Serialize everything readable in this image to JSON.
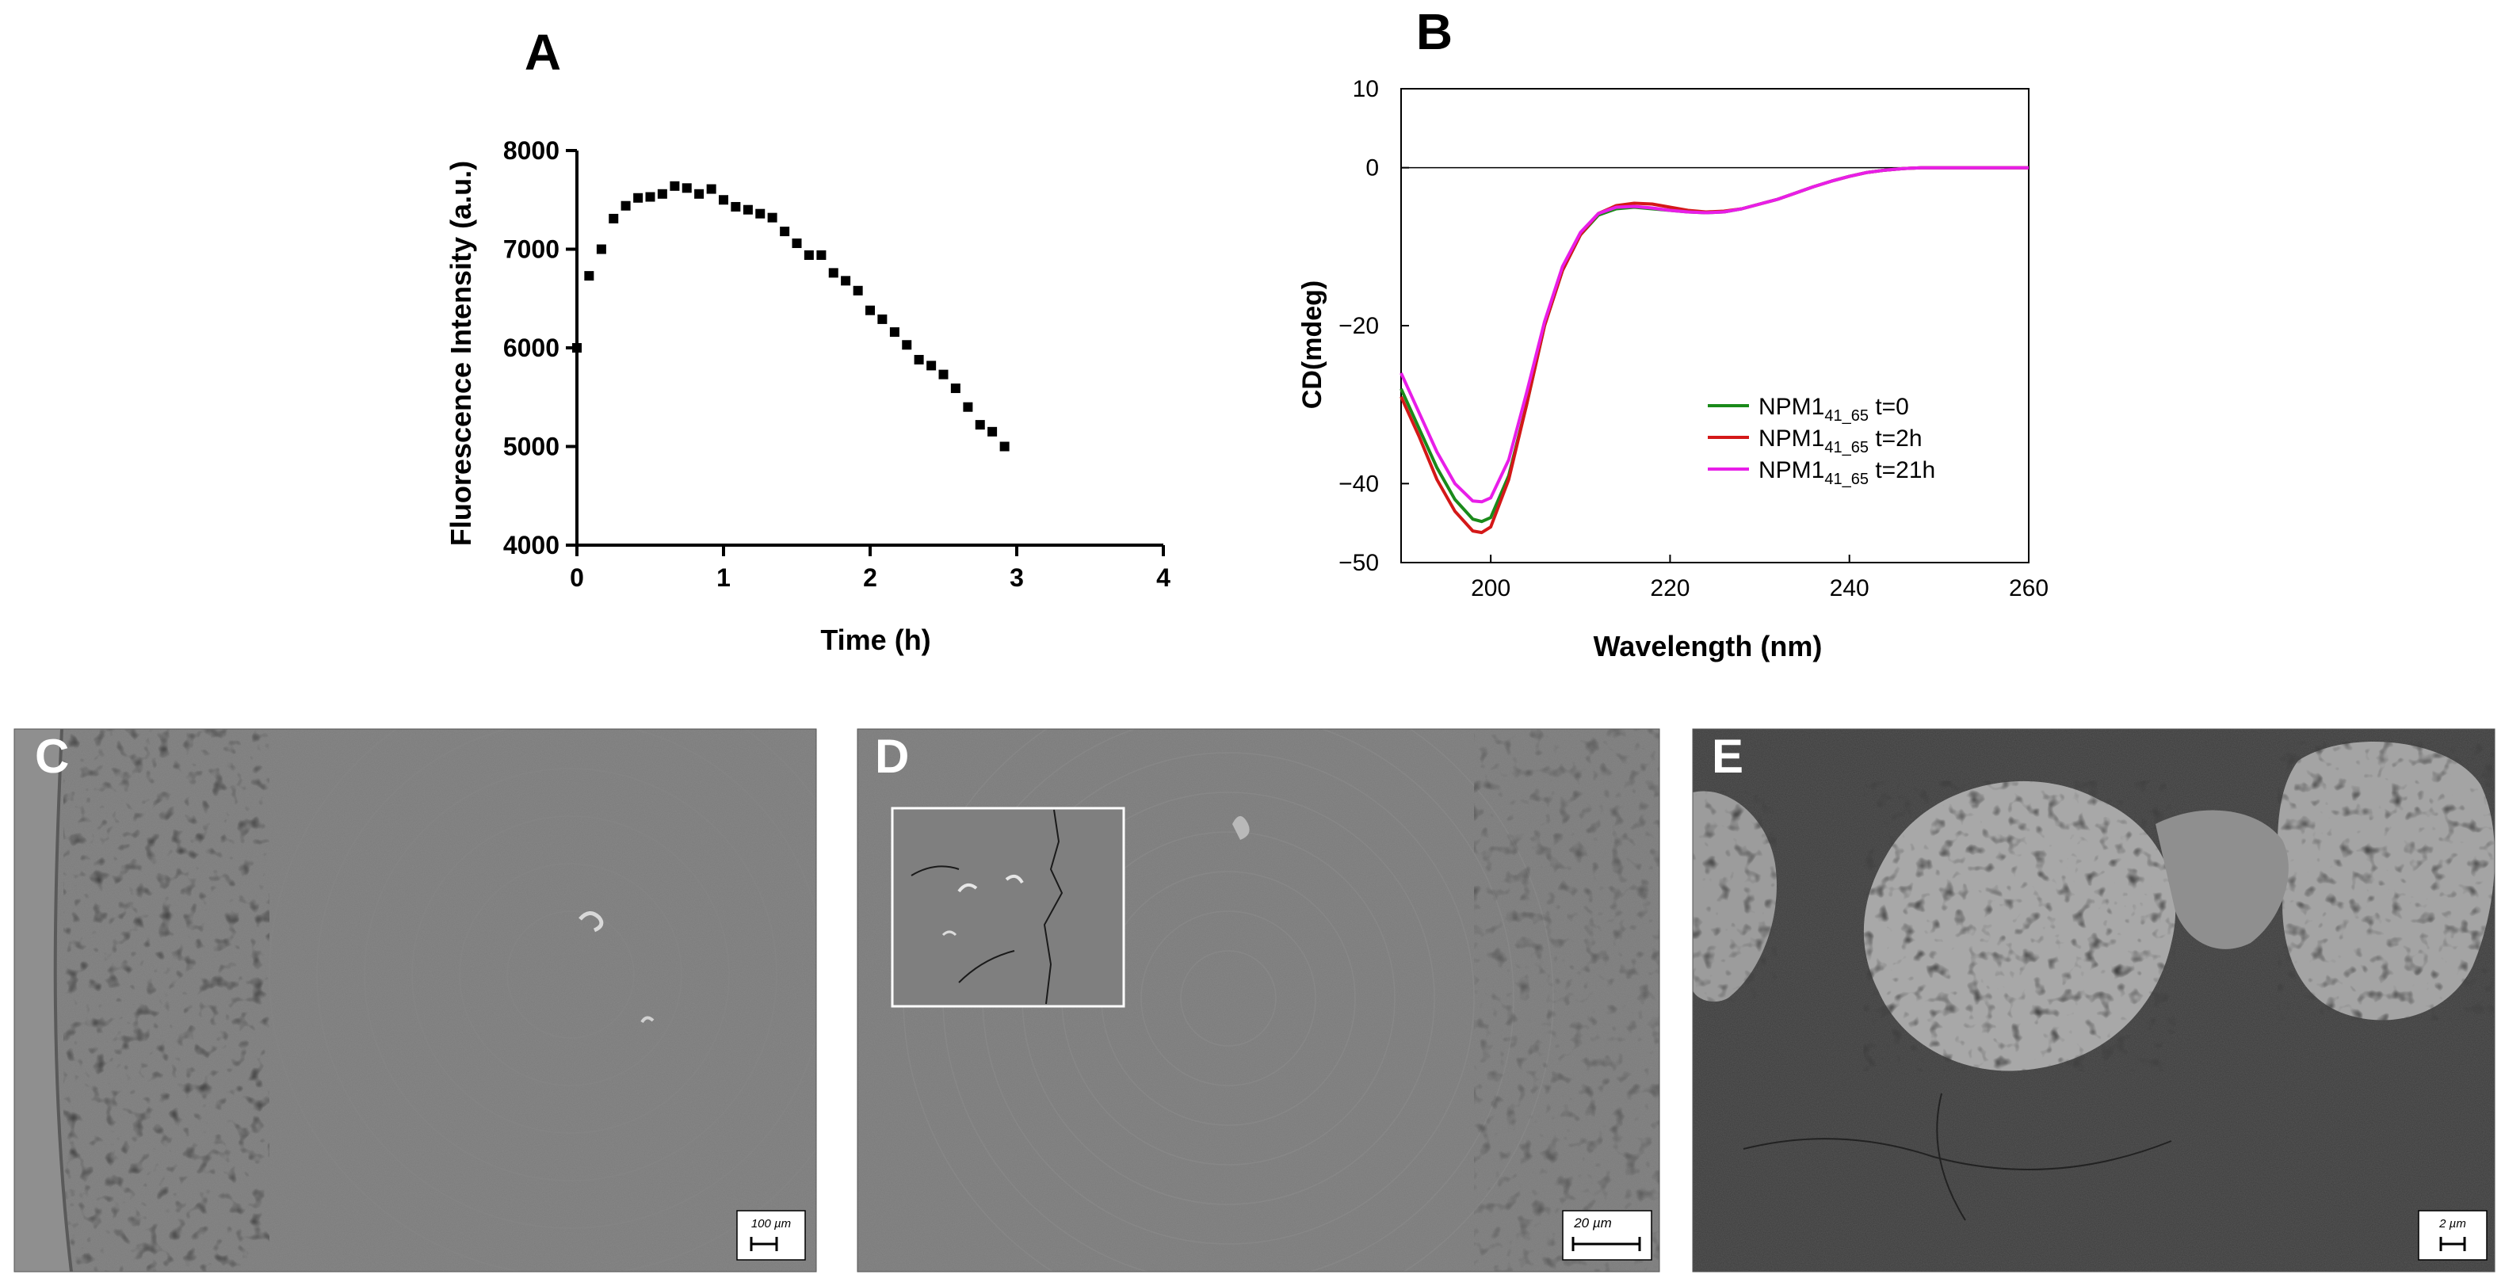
{
  "panels": [
    {
      "letter": "A"
    },
    {
      "letter": "B"
    },
    {
      "letter": "C",
      "scale_bar": "100 µm"
    },
    {
      "letter": "D",
      "scale_bar": "20 µm"
    },
    {
      "letter": "E",
      "scale_bar": "2 µm"
    }
  ],
  "chart_data": [
    {
      "type": "scatter",
      "panel": "A",
      "xlabel": "Time (h)",
      "ylabel": "Fluorescence Intensity (a.u.)",
      "xlim": [
        0,
        4
      ],
      "ylim": [
        4000,
        8000
      ],
      "xticks": [
        "0",
        "1",
        "2",
        "3",
        "4"
      ],
      "yticks": [
        "4000",
        "5000",
        "6000",
        "7000",
        "8000"
      ],
      "grid": false,
      "marker": "square",
      "color": "#000000",
      "x": [
        0.0,
        0.083,
        0.167,
        0.25,
        0.333,
        0.417,
        0.5,
        0.583,
        0.667,
        0.75,
        0.833,
        0.917,
        1.0,
        1.083,
        1.167,
        1.25,
        1.333,
        1.417,
        1.5,
        1.583,
        1.667,
        1.75,
        1.833,
        1.917,
        2.0,
        2.083,
        2.167,
        2.25,
        2.333,
        2.417,
        2.5,
        2.583,
        2.667,
        2.75,
        2.833,
        2.917
      ],
      "y": [
        6000,
        6730,
        7000,
        7310,
        7440,
        7520,
        7530,
        7560,
        7640,
        7620,
        7560,
        7610,
        7500,
        7430,
        7400,
        7360,
        7320,
        7180,
        7060,
        6940,
        6940,
        6760,
        6680,
        6580,
        6380,
        6290,
        6160,
        6030,
        5880,
        5820,
        5730,
        5590,
        5400,
        5220,
        5150,
        5000
      ]
    },
    {
      "type": "line",
      "panel": "B",
      "xlabel": "Wavelength (nm)",
      "ylabel": "CD(mdeg)",
      "xlim": [
        190,
        260
      ],
      "ylim": [
        -50,
        10
      ],
      "xticks": [
        "200",
        "220",
        "240",
        "260"
      ],
      "yticks": [
        "10",
        "0",
        "-20",
        "-40",
        "-50"
      ],
      "zero_line": true,
      "legend_position": "lower-right",
      "x": [
        190,
        192,
        194,
        196,
        198,
        199,
        200,
        202,
        204,
        206,
        208,
        210,
        212,
        214,
        216,
        218,
        220,
        222,
        224,
        226,
        228,
        230,
        232,
        234,
        236,
        238,
        240,
        242,
        244,
        246,
        248,
        250,
        255,
        260
      ],
      "series": [
        {
          "name_base": "NPM1",
          "name_sub": "41_65",
          "name_suffix": " t=0",
          "color": "#1a8a1a",
          "values": [
            -28,
            -33,
            -38,
            -42,
            -44.5,
            -44.8,
            -44.3,
            -39,
            -30,
            -20,
            -13,
            -8.5,
            -6,
            -5.2,
            -5.0,
            -5.2,
            -5.4,
            -5.6,
            -5.7,
            -5.6,
            -5.2,
            -4.6,
            -4.0,
            -3.2,
            -2.4,
            -1.7,
            -1.1,
            -0.6,
            -0.3,
            -0.1,
            0,
            0,
            0,
            0
          ]
        },
        {
          "name_base": "NPM1",
          "name_sub": "41_65",
          "name_suffix": " t=2h",
          "color": "#d41818",
          "values": [
            -29,
            -34,
            -39.5,
            -43.5,
            -46,
            -46.2,
            -45.5,
            -39.5,
            -30,
            -20,
            -13,
            -8.5,
            -5.8,
            -4.8,
            -4.5,
            -4.6,
            -5.0,
            -5.4,
            -5.6,
            -5.5,
            -5.2,
            -4.6,
            -4.0,
            -3.2,
            -2.4,
            -1.7,
            -1.1,
            -0.6,
            -0.3,
            -0.1,
            0,
            0,
            0,
            0
          ]
        },
        {
          "name_base": "NPM1",
          "name_sub": "41_65",
          "name_suffix": " t=21h",
          "color": "#e81ee8",
          "values": [
            -26,
            -31,
            -36,
            -40,
            -42.2,
            -42.3,
            -41.8,
            -37,
            -28.5,
            -19.5,
            -12.5,
            -8.2,
            -5.8,
            -5.0,
            -4.9,
            -5.1,
            -5.4,
            -5.6,
            -5.7,
            -5.6,
            -5.2,
            -4.6,
            -4.0,
            -3.2,
            -2.4,
            -1.7,
            -1.1,
            -0.6,
            -0.3,
            -0.1,
            0,
            0,
            0,
            0
          ]
        }
      ]
    }
  ]
}
